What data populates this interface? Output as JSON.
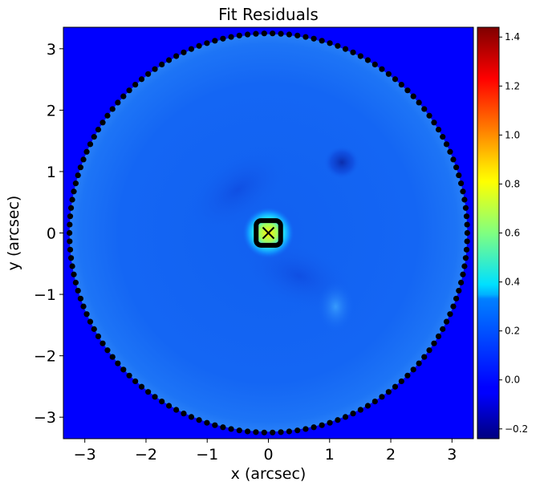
{
  "chart_data": {
    "type": "heatmap",
    "title": "Fit Residuals",
    "xlabel": "x (arcsec)",
    "ylabel": "y (arcsec)",
    "xlim": [
      -3.35,
      3.35
    ],
    "ylim": [
      -3.35,
      3.35
    ],
    "x_ticks": [
      -3,
      -2,
      -1,
      0,
      1,
      2,
      3
    ],
    "x_tick_labels": [
      "−3",
      "−2",
      "−1",
      "0",
      "1",
      "2",
      "3"
    ],
    "y_ticks": [
      -3,
      -2,
      -1,
      0,
      1,
      2,
      3
    ],
    "y_tick_labels": [
      "−3",
      "−2",
      "−1",
      "0",
      "1",
      "2",
      "3"
    ],
    "colormap": "jet",
    "colorbar": {
      "range": [
        -0.24,
        1.44
      ],
      "ticks": [
        -0.2,
        0.0,
        0.2,
        0.4,
        0.6,
        0.8,
        1.0,
        1.2,
        1.4
      ],
      "tick_labels": [
        "−0.2",
        "0.0",
        "0.2",
        "0.4",
        "0.6",
        "0.8",
        "1.0",
        "1.2",
        "1.4"
      ]
    },
    "mask": {
      "outer_radius": 3.25,
      "inner_box_halfwidth": 0.2,
      "marker_color": "#000000"
    },
    "background_value": 0.0,
    "disc_value": 0.1,
    "features": [
      {
        "x": 0.0,
        "y": 0.0,
        "value": 0.7,
        "kind": "central peak"
      },
      {
        "x": 1.2,
        "y": 1.15,
        "value": -0.1,
        "kind": "dark spot"
      },
      {
        "x": 0.5,
        "y": -0.7,
        "value": -0.05,
        "kind": "dark band"
      },
      {
        "x": 1.1,
        "y": -1.2,
        "value": 0.25,
        "kind": "bright arc"
      },
      {
        "x": -0.5,
        "y": 0.7,
        "value": 0.05,
        "kind": "dark band"
      }
    ],
    "center_marker": {
      "x": 0,
      "y": 0,
      "symbol": "x"
    },
    "grid": false
  }
}
